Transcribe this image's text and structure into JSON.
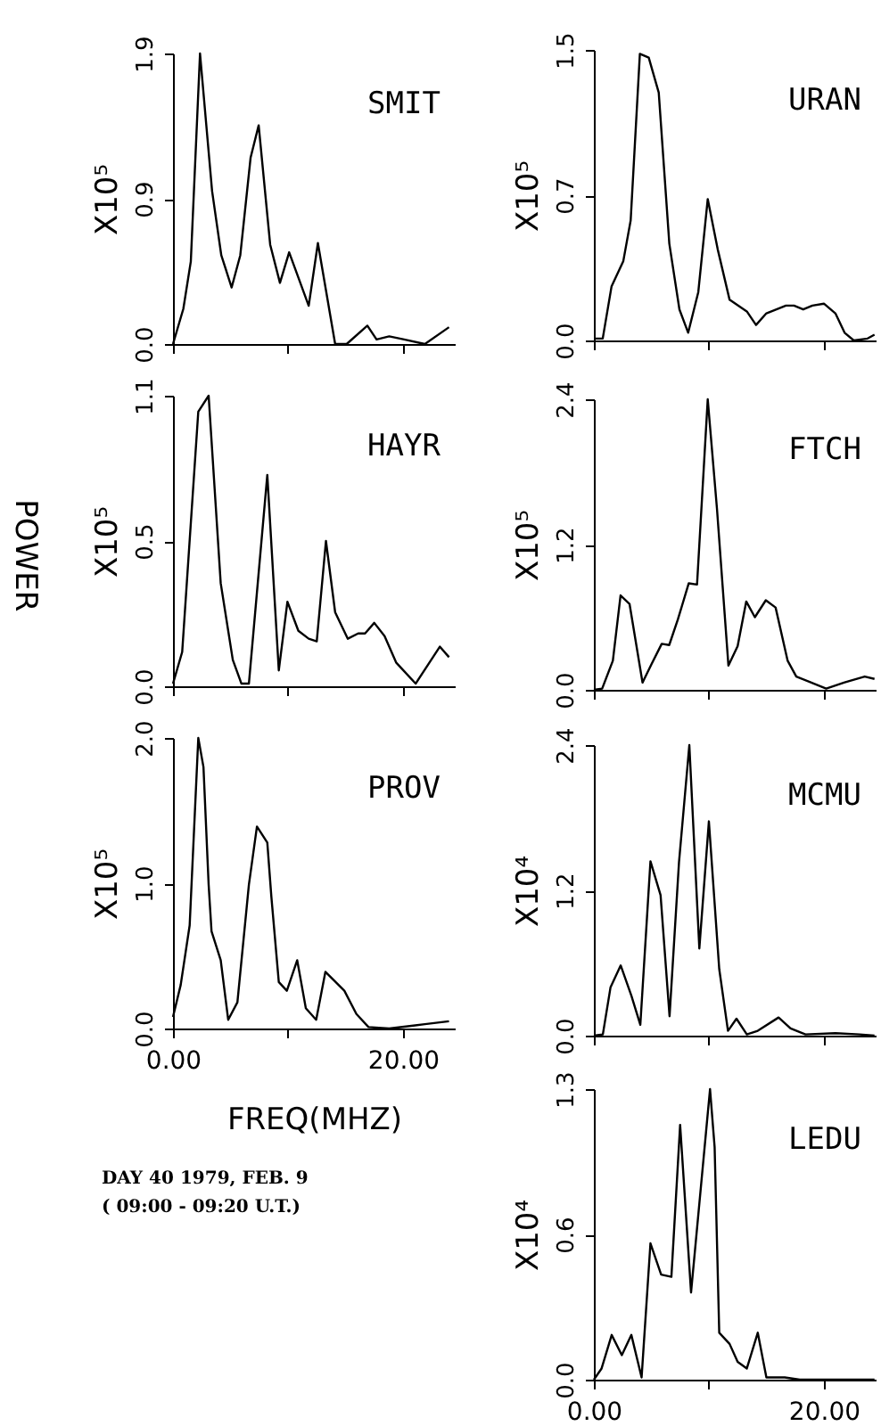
{
  "chart_data": [
    {
      "type": "line",
      "title": "SMIT",
      "ylabel": "X10⁵",
      "tick_labels": "y",
      "xlim": [
        0,
        24.5
      ],
      "ylim": [
        0,
        1.9
      ],
      "xticks": [
        0,
        10,
        20
      ],
      "yticks": [
        {
          "value": 0,
          "label": "0.0"
        },
        {
          "value": 0.95,
          "label": "0.9"
        },
        1.9
      ],
      "x": [
        0,
        0.9,
        1.55,
        2.35,
        3.4,
        4.2,
        5.1,
        5.85,
        6.75,
        7.45,
        8.45,
        9.3,
        10.1,
        11.8,
        12.6,
        14.1,
        15.1,
        16.9,
        17.7,
        18.8,
        20.1,
        21.9,
        24
      ],
      "series": [
        {
          "color": "#000000",
          "values": [
            0,
            0.23,
            0.54,
            1.9,
            1.0,
            0.58,
            0.37,
            0.58,
            1.22,
            1.43,
            0.65,
            0.4,
            0.6,
            0.25,
            0.66,
            0,
            0,
            0.12,
            0.03,
            0.05,
            0.03,
            0,
            0.11
          ]
        }
      ]
    },
    {
      "type": "line",
      "title": "HAYR",
      "ylabel": "X10⁵",
      "tick_labels": "y",
      "annotations": [
        "POWER"
      ],
      "xlim": [
        0,
        24.5
      ],
      "ylim": [
        0,
        1.1
      ],
      "xticks": [
        0,
        10,
        20
      ],
      "yticks": [
        {
          "value": 0,
          "label": "0.0"
        },
        {
          "value": 0.55,
          "label": "0.5"
        },
        1.1
      ],
      "x": [
        0,
        0.8,
        2.2,
        3.1,
        4.15,
        5.2,
        5.95,
        6.6,
        8.2,
        9.2,
        9.95,
        10.9,
        11.8,
        12.5,
        13.3,
        14.1,
        15.2,
        16.1,
        16.7,
        17.5,
        18.4,
        19.4,
        21.1,
        23.2,
        24
      ],
      "series": [
        {
          "color": "#000000",
          "values": [
            0.01,
            0.13,
            1.04,
            1.1,
            0.39,
            0.1,
            0.01,
            0.01,
            0.8,
            0.06,
            0.32,
            0.21,
            0.18,
            0.17,
            0.55,
            0.28,
            0.18,
            0.2,
            0.2,
            0.24,
            0.19,
            0.09,
            0.01,
            0.15,
            0.11
          ]
        }
      ]
    },
    {
      "type": "line",
      "title": "PROV",
      "ylabel": "X10⁵",
      "xlabel": "FREQ(MHZ)",
      "annotations": [
        "DAY 40 1979, FEB. 9",
        "( 09:00 - 09:20 U.T.)"
      ],
      "xlim": [
        0,
        24.5
      ],
      "ylim": [
        0,
        2.0
      ],
      "xticks": [
        {
          "value": 0,
          "label": "0.00"
        },
        {
          "value": 10,
          "label": null
        },
        {
          "value": 20,
          "label": "20.00"
        }
      ],
      "yticks": [
        {
          "value": 0,
          "label": "0.0"
        },
        {
          "value": 1,
          "label": "1.0"
        },
        {
          "value": 2,
          "label": "2.0"
        }
      ],
      "x": [
        0,
        0.67,
        1.45,
        2.2,
        2.65,
        3.1,
        3.35,
        4.15,
        4.8,
        5.6,
        6.6,
        7.3,
        8.2,
        8.55,
        9.2,
        9.9,
        10.8,
        11.55,
        12.45,
        13.25,
        14.9,
        15.95,
        17,
        18.8,
        20.9,
        21.9,
        24
      ],
      "series": [
        {
          "color": "#000000",
          "values": [
            0.08,
            0.3,
            0.71,
            2.0,
            1.8,
            0.99,
            0.67,
            0.47,
            0.06,
            0.18,
            0.99,
            1.39,
            1.28,
            0.91,
            0.32,
            0.26,
            0.47,
            0.14,
            0.06,
            0.39,
            0.26,
            0.1,
            0.01,
            0,
            0.02,
            0.03,
            0.05
          ]
        }
      ]
    },
    {
      "type": "line",
      "title": "URAN",
      "ylabel": "X10⁵",
      "tick_labels": "y",
      "xlim": [
        0,
        24.5
      ],
      "ylim": [
        0,
        1.5
      ],
      "xticks": [
        0,
        10,
        20
      ],
      "yticks": [
        {
          "value": 0,
          "label": "0.0"
        },
        {
          "value": 0.75,
          "label": "0.7"
        },
        1.5
      ],
      "x": [
        0,
        0.77,
        1.54,
        2.56,
        3.2,
        4.0,
        4.77,
        5.64,
        6.56,
        7.44,
        8.2,
        9.08,
        9.9,
        10.77,
        11.8,
        13.3,
        14.1,
        15.0,
        16.7,
        17.4,
        18.2,
        19.0,
        20.0,
        21.0,
        21.8,
        22.6,
        23.8,
        24.4
      ],
      "series": [
        {
          "color": "#000000",
          "values": [
            0.01,
            0.01,
            0.28,
            0.41,
            0.62,
            1.48,
            1.46,
            1.28,
            0.5,
            0.16,
            0.04,
            0.25,
            0.73,
            0.47,
            0.21,
            0.15,
            0.08,
            0.14,
            0.18,
            0.18,
            0.16,
            0.18,
            0.19,
            0.14,
            0.04,
            0,
            0.01,
            0.03
          ]
        }
      ]
    },
    {
      "type": "line",
      "title": "FTCH",
      "ylabel": "X10⁵",
      "tick_labels": "y",
      "xlim": [
        0,
        24.5
      ],
      "ylim": [
        0,
        2.4
      ],
      "xticks": [
        0,
        10,
        20
      ],
      "yticks": [
        {
          "value": 0,
          "label": "0.0"
        },
        1.2,
        2.4
      ],
      "x": [
        0,
        0.72,
        1.65,
        2.32,
        3.1,
        4.23,
        5.0,
        5.9,
        6.55,
        7.3,
        8.25,
        8.97,
        9.9,
        10.7,
        11.7,
        12.5,
        13.25,
        14.0,
        14.95,
        15.8,
        16.85,
        17.6,
        20.2,
        21.75,
        23.55,
        24.4
      ],
      "series": [
        {
          "color": "#000000",
          "values": [
            0,
            0.01,
            0.24,
            0.78,
            0.71,
            0.06,
            0.21,
            0.38,
            0.37,
            0.58,
            0.88,
            0.87,
            2.4,
            1.5,
            0.2,
            0.36,
            0.73,
            0.6,
            0.74,
            0.68,
            0.24,
            0.11,
            0.01,
            0.06,
            0.11,
            0.09
          ]
        }
      ]
    },
    {
      "type": "line",
      "title": "MCMU",
      "ylabel": "X10⁴",
      "tick_labels": "y",
      "xlim": [
        0,
        24.5
      ],
      "ylim": [
        0,
        2.4
      ],
      "xticks": [
        0,
        10,
        20
      ],
      "yticks": [
        {
          "value": 0,
          "label": "0.0"
        },
        1.2,
        2.4
      ],
      "x": [
        0,
        0.78,
        1.45,
        2.33,
        3.26,
        4.04,
        4.92,
        5.8,
        6.58,
        7.4,
        8.3,
        9.17,
        10.0,
        10.9,
        11.66,
        12.4,
        13.3,
        14.25,
        16.06,
        17.1,
        18.4,
        21.0,
        23.1,
        24.4
      ],
      "series": [
        {
          "color": "#000000",
          "values": [
            0,
            0.01,
            0.4,
            0.58,
            0.33,
            0.09,
            1.44,
            1.16,
            0.16,
            1.43,
            2.4,
            0.72,
            1.77,
            0.55,
            0.04,
            0.14,
            0.01,
            0.04,
            0.15,
            0.06,
            0.01,
            0.02,
            0.01,
            0
          ]
        }
      ]
    },
    {
      "type": "line",
      "title": "LEDU",
      "ylabel": "X10⁴",
      "xlim": [
        0,
        24.5
      ],
      "ylim": [
        0,
        1.3
      ],
      "xticks": [
        {
          "value": 0,
          "label": "0.00"
        },
        {
          "value": 10,
          "label": null
        },
        {
          "value": 20,
          "label": "20.00"
        }
      ],
      "yticks": [
        {
          "value": 0,
          "label": "0.0"
        },
        {
          "value": 0.65,
          "label": "0.6"
        },
        1.3
      ],
      "x": [
        0,
        0.67,
        1.55,
        2.43,
        3.26,
        4.15,
        4.92,
        5.85,
        6.74,
        7.5,
        8.45,
        10.1,
        10.5,
        10.9,
        11.8,
        12.5,
        13.3,
        14.25,
        15.0,
        16.6,
        17.9,
        19.4,
        20.5,
        23.1,
        24.4
      ],
      "series": [
        {
          "color": "#000000",
          "values": [
            0,
            0.05,
            0.2,
            0.11,
            0.2,
            0.01,
            0.61,
            0.47,
            0.46,
            1.14,
            0.39,
            1.3,
            1.04,
            0.21,
            0.16,
            0.08,
            0.05,
            0.21,
            0.01,
            0.01,
            0,
            0,
            0,
            0,
            0
          ]
        }
      ]
    }
  ]
}
